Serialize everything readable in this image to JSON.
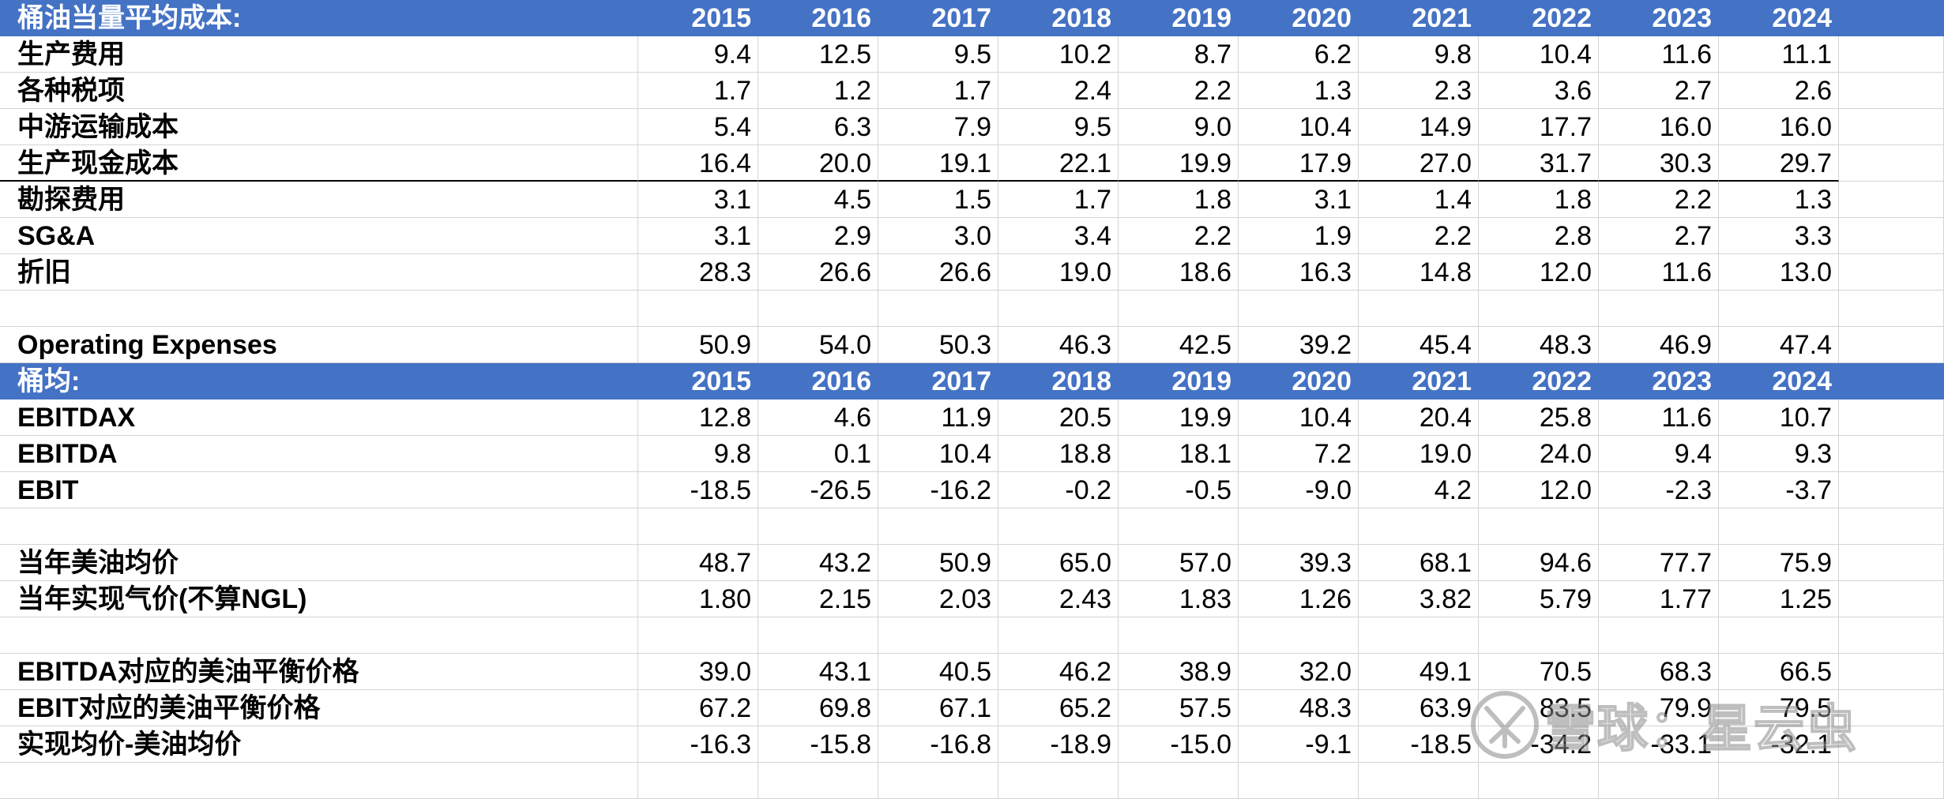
{
  "sections": [
    {
      "header": {
        "label": "桶油当量平均成本:",
        "years": [
          "2015",
          "2016",
          "2017",
          "2018",
          "2019",
          "2020",
          "2021",
          "2022",
          "2023",
          "2024"
        ]
      },
      "rows": [
        {
          "label": "生产费用",
          "values": [
            "9.4",
            "12.5",
            "9.5",
            "10.2",
            "8.7",
            "6.2",
            "9.8",
            "10.4",
            "11.6",
            "11.1"
          ]
        },
        {
          "label": "各种税项",
          "values": [
            "1.7",
            "1.2",
            "1.7",
            "2.4",
            "2.2",
            "1.3",
            "2.3",
            "3.6",
            "2.7",
            "2.6"
          ]
        },
        {
          "label": "中游运输成本",
          "values": [
            "5.4",
            "6.3",
            "7.9",
            "9.5",
            "9.0",
            "10.4",
            "14.9",
            "17.7",
            "16.0",
            "16.0"
          ]
        },
        {
          "label": "生产现金成本",
          "values": [
            "16.4",
            "20.0",
            "19.1",
            "22.1",
            "19.9",
            "17.9",
            "27.0",
            "31.7",
            "30.3",
            "29.7"
          ],
          "thick": true
        },
        {
          "label": "勘探费用",
          "values": [
            "3.1",
            "4.5",
            "1.5",
            "1.7",
            "1.8",
            "3.1",
            "1.4",
            "1.8",
            "2.2",
            "1.3"
          ]
        },
        {
          "label": "SG&A",
          "values": [
            "3.1",
            "2.9",
            "3.0",
            "3.4",
            "2.2",
            "1.9",
            "2.2",
            "2.8",
            "2.7",
            "3.3"
          ]
        },
        {
          "label": "折旧",
          "values": [
            "28.3",
            "26.6",
            "26.6",
            "19.0",
            "18.6",
            "16.3",
            "14.8",
            "12.0",
            "11.6",
            "13.0"
          ]
        },
        {
          "label": "",
          "values": [
            "",
            "",
            "",
            "",
            "",
            "",
            "",
            "",
            "",
            ""
          ]
        },
        {
          "label": "Operating Expenses",
          "values": [
            "50.9",
            "54.0",
            "50.3",
            "46.3",
            "42.5",
            "39.2",
            "45.4",
            "48.3",
            "46.9",
            "47.4"
          ]
        }
      ]
    },
    {
      "header": {
        "label": "桶均:",
        "years": [
          "2015",
          "2016",
          "2017",
          "2018",
          "2019",
          "2020",
          "2021",
          "2022",
          "2023",
          "2024"
        ]
      },
      "rows": [
        {
          "label": "EBITDAX",
          "values": [
            "12.8",
            "4.6",
            "11.9",
            "20.5",
            "19.9",
            "10.4",
            "20.4",
            "25.8",
            "11.6",
            "10.7"
          ]
        },
        {
          "label": "EBITDA",
          "values": [
            "9.8",
            "0.1",
            "10.4",
            "18.8",
            "18.1",
            "7.2",
            "19.0",
            "24.0",
            "9.4",
            "9.3"
          ]
        },
        {
          "label": "EBIT",
          "values": [
            "-18.5",
            "-26.5",
            "-16.2",
            "-0.2",
            "-0.5",
            "-9.0",
            "4.2",
            "12.0",
            "-2.3",
            "-3.7"
          ]
        },
        {
          "label": "",
          "values": [
            "",
            "",
            "",
            "",
            "",
            "",
            "",
            "",
            "",
            ""
          ]
        },
        {
          "label": "当年美油均价",
          "values": [
            "48.7",
            "43.2",
            "50.9",
            "65.0",
            "57.0",
            "39.3",
            "68.1",
            "94.6",
            "77.7",
            "75.9"
          ]
        },
        {
          "label": "当年实现气价(不算NGL)",
          "values": [
            "1.80",
            "2.15",
            "2.03",
            "2.43",
            "1.83",
            "1.26",
            "3.82",
            "5.79",
            "1.77",
            "1.25"
          ]
        },
        {
          "label": "",
          "values": [
            "",
            "",
            "",
            "",
            "",
            "",
            "",
            "",
            "",
            ""
          ]
        },
        {
          "label": "EBITDA对应的美油平衡价格",
          "values": [
            "39.0",
            "43.1",
            "40.5",
            "46.2",
            "38.9",
            "32.0",
            "49.1",
            "70.5",
            "68.3",
            "66.5"
          ]
        },
        {
          "label": "EBIT对应的美油平衡价格",
          "values": [
            "67.2",
            "69.8",
            "67.1",
            "65.2",
            "57.5",
            "48.3",
            "63.9",
            "83.5",
            "79.9",
            "79.5"
          ]
        },
        {
          "label": "实现均价-美油均价",
          "values": [
            "-16.3",
            "-15.8",
            "-16.8",
            "-18.9",
            "-15.0",
            "-9.1",
            "-18.5",
            "-34.2",
            "-33.1",
            "-32.1"
          ]
        },
        {
          "label": "",
          "values": [
            "",
            "",
            "",
            "",
            "",
            "",
            "",
            "",
            "",
            ""
          ]
        }
      ]
    }
  ],
  "watermark": {
    "text": "雪球：星云虫",
    "logo": "snowball-logo-icon"
  }
}
